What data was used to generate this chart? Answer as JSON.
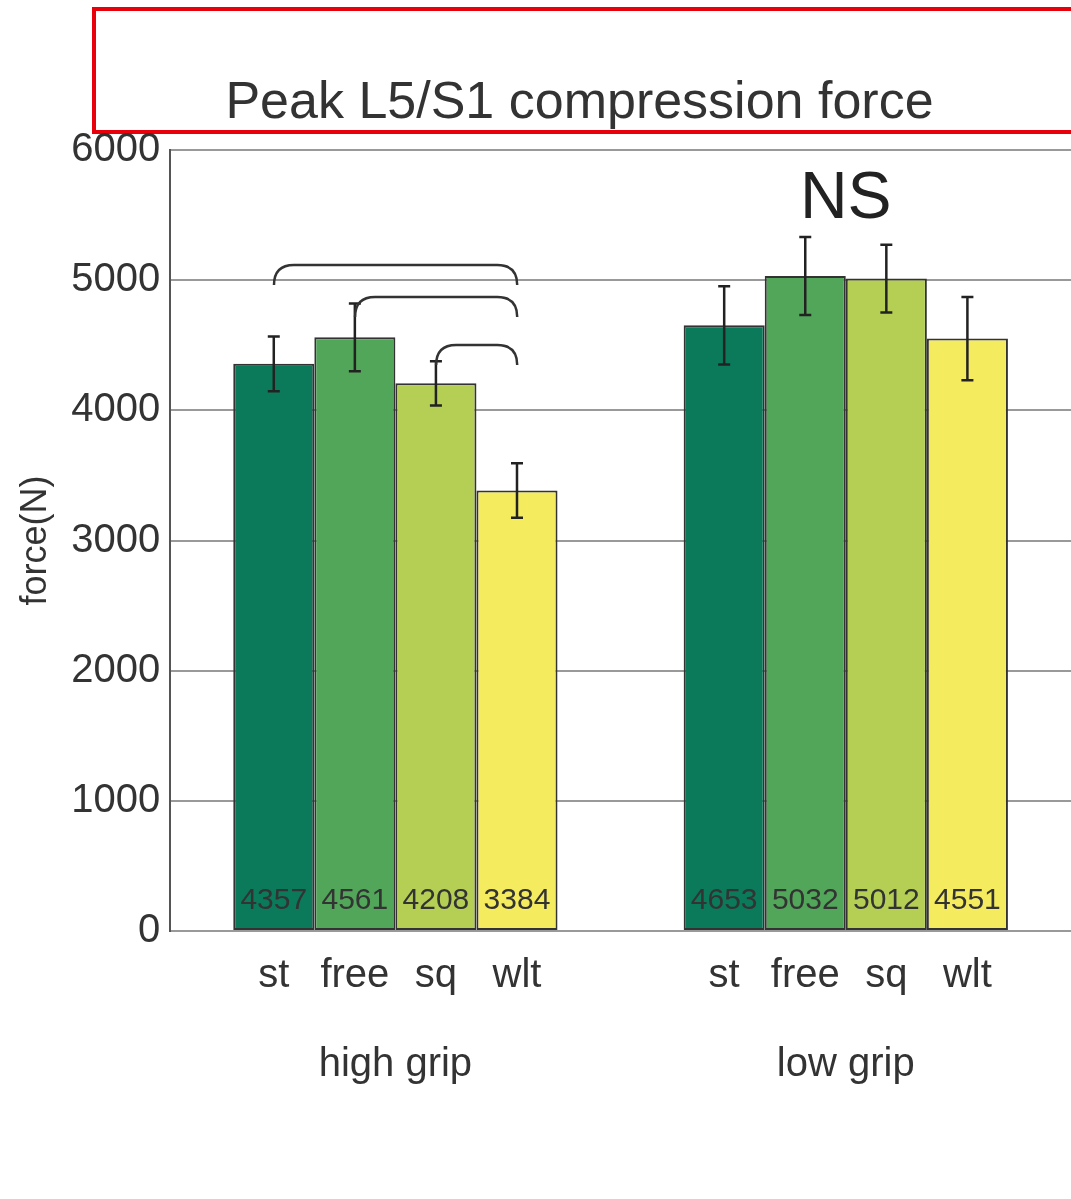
{
  "chart_data": {
    "type": "bar",
    "title": "Peak L5/S1 compression force",
    "ylabel": "force(N)",
    "categories": [
      "high grip",
      "low grip"
    ],
    "series": [
      {
        "name": "st",
        "color": "#0a7a5a",
        "values": [
          4357,
          4653
        ],
        "errors": [
          210,
          300
        ]
      },
      {
        "name": "free",
        "color": "#52a65a",
        "values": [
          4561,
          5032
        ],
        "errors": [
          260,
          300
        ]
      },
      {
        "name": "sq",
        "color": "#b5cf55",
        "values": [
          4208,
          5012
        ],
        "errors": [
          170,
          260
        ]
      },
      {
        "name": "wlt",
        "color": "#f5eb5f",
        "values": [
          3384,
          4551
        ],
        "errors": [
          210,
          320
        ]
      }
    ],
    "ylim": [
      0,
      6000
    ],
    "yticks": [
      0,
      1000,
      2000,
      3000,
      4000,
      5000,
      6000
    ],
    "grid": "y",
    "legend": false,
    "data_labels": true,
    "annotations": [
      "NS"
    ]
  }
}
